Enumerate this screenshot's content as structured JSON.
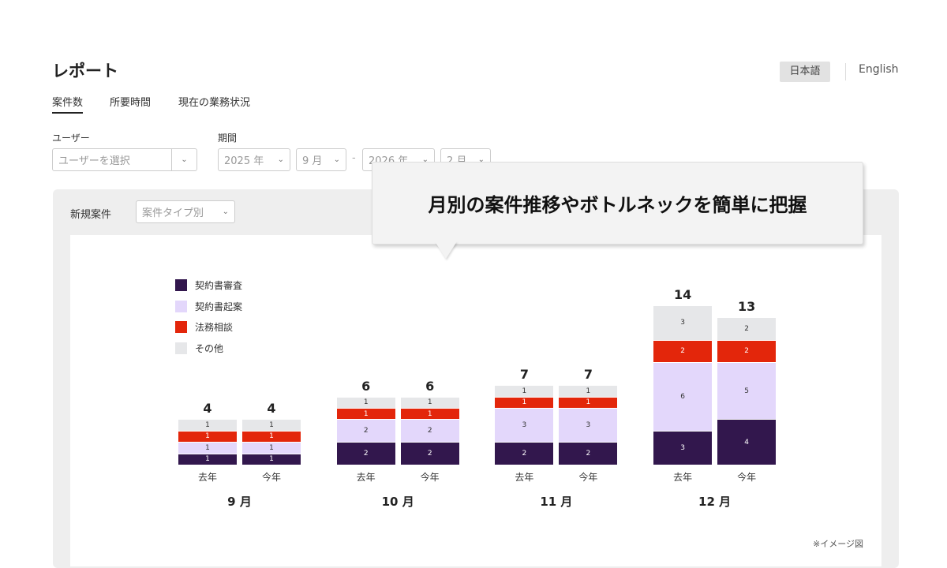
{
  "header": {
    "title": "レポート",
    "lang_ja": "日本語",
    "lang_en": "English"
  },
  "tabs": [
    {
      "label": "案件数",
      "active": true
    },
    {
      "label": "所要時間"
    },
    {
      "label": "現在の業務状況"
    }
  ],
  "filters": {
    "user_label": "ユーザー",
    "user_placeholder": "ユーザーを選択",
    "period_label": "期間",
    "start_year": "2025 年",
    "start_month": "9 月",
    "separator": "-",
    "end_year": "2026 年",
    "end_month": "2 月"
  },
  "card": {
    "title": "新規案件",
    "type_select": "案件タイプ別"
  },
  "callout": "月別の案件推移やボトルネックを簡単に把握",
  "note": "※イメージ図",
  "chart_data": {
    "type": "bar",
    "stacked": true,
    "legend": [
      {
        "name": "契約書審査",
        "color": "#32174d"
      },
      {
        "name": "契約書起案",
        "color": "#e3d7fb"
      },
      {
        "name": "法務相談",
        "color": "#e3260b"
      },
      {
        "name": "その他",
        "color": "#e6e7e9"
      }
    ],
    "groups": [
      {
        "month": "9 月",
        "bars": [
          {
            "label": "去年",
            "total": "4",
            "values": [
              1,
              1,
              1,
              1
            ]
          },
          {
            "label": "今年",
            "total": "4",
            "values": [
              1,
              1,
              1,
              1
            ]
          }
        ]
      },
      {
        "month": "10 月",
        "bars": [
          {
            "label": "去年",
            "total": "6",
            "values": [
              2,
              2,
              1,
              1
            ]
          },
          {
            "label": "今年",
            "total": "6",
            "values": [
              2,
              2,
              1,
              1
            ]
          }
        ]
      },
      {
        "month": "11 月",
        "bars": [
          {
            "label": "去年",
            "total": "7",
            "values": [
              2,
              3,
              1,
              1
            ]
          },
          {
            "label": "今年",
            "total": "7",
            "values": [
              2,
              3,
              1,
              1
            ]
          }
        ]
      },
      {
        "month": "12 月",
        "bars": [
          {
            "label": "去年",
            "total": "14",
            "values": [
              3,
              6,
              2,
              3
            ]
          },
          {
            "label": "今年",
            "total": "13",
            "values": [
              4,
              5,
              2,
              2
            ]
          }
        ]
      }
    ]
  }
}
